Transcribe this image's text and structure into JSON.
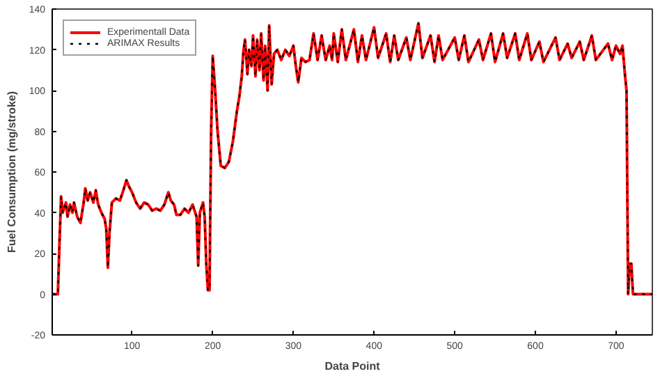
{
  "chart_data": {
    "type": "line",
    "xlabel": "Data Point",
    "ylabel": "Fuel Consumption (mg/stroke)",
    "xlim": [
      1,
      745
    ],
    "ylim": [
      -20,
      140
    ],
    "xticks": [
      100,
      200,
      300,
      400,
      500,
      600,
      700
    ],
    "yticks": [
      -20,
      0,
      20,
      40,
      60,
      80,
      100,
      120,
      140
    ],
    "grid": false,
    "legend": "top left",
    "x": [
      1,
      8,
      10,
      12,
      14,
      18,
      20,
      23,
      26,
      28,
      32,
      36,
      40,
      42,
      45,
      48,
      52,
      55,
      58,
      62,
      66,
      68,
      70,
      72,
      75,
      80,
      85,
      90,
      93,
      96,
      100,
      105,
      110,
      115,
      120,
      125,
      130,
      135,
      140,
      145,
      148,
      152,
      155,
      160,
      165,
      170,
      175,
      180,
      182,
      184,
      188,
      190,
      192,
      194,
      196,
      198,
      200,
      203,
      206,
      210,
      215,
      220,
      225,
      230,
      233,
      236,
      238,
      240,
      243,
      245,
      248,
      250,
      253,
      255,
      258,
      260,
      263,
      265,
      268,
      270,
      273,
      276,
      280,
      285,
      290,
      295,
      300,
      303,
      306,
      310,
      315,
      320,
      325,
      330,
      335,
      340,
      345,
      348,
      350,
      355,
      360,
      365,
      375,
      380,
      385,
      390,
      400,
      405,
      415,
      420,
      425,
      430,
      440,
      445,
      455,
      460,
      470,
      475,
      480,
      485,
      500,
      505,
      512,
      517,
      530,
      535,
      545,
      550,
      560,
      565,
      575,
      580,
      590,
      595,
      605,
      610,
      625,
      630,
      640,
      645,
      655,
      660,
      670,
      675,
      690,
      695,
      700,
      705,
      708,
      711,
      713,
      715,
      717,
      719,
      721,
      745
    ],
    "series": [
      {
        "name": "Experimentall Data",
        "color": "#ff0000",
        "line_style": "solid",
        "values": [
          0,
          0,
          25,
          48,
          40,
          45,
          38,
          44,
          40,
          45,
          38,
          35,
          45,
          52,
          46,
          50,
          45,
          51,
          44,
          40,
          37,
          32,
          13,
          30,
          45,
          47,
          46,
          52,
          56,
          53,
          50,
          45,
          42,
          45,
          44,
          41,
          42,
          41,
          44,
          50,
          46,
          44,
          39,
          39,
          42,
          40,
          44,
          38,
          14,
          40,
          45,
          38,
          15,
          2,
          2,
          80,
          117,
          100,
          80,
          63,
          62,
          65,
          75,
          90,
          97,
          107,
          119,
          125,
          108,
          120,
          112,
          127,
          107,
          125,
          110,
          128,
          105,
          122,
          100,
          132,
          103,
          118,
          120,
          115,
          120,
          117,
          122,
          112,
          104,
          116,
          114,
          115,
          128,
          115,
          127,
          115,
          122,
          115,
          128,
          114,
          130,
          115,
          130,
          114,
          127,
          115,
          131,
          116,
          128,
          114,
          127,
          115,
          126,
          115,
          133,
          116,
          127,
          114,
          127,
          115,
          126,
          115,
          127,
          114,
          125,
          115,
          128,
          114,
          128,
          116,
          128,
          115,
          128,
          115,
          124,
          114,
          126,
          115,
          123,
          116,
          124,
          115,
          127,
          115,
          123,
          115,
          122,
          118,
          122,
          108,
          100,
          0,
          15,
          15,
          0,
          0
        ]
      },
      {
        "name": "ARIMAX Results",
        "color": "#000000",
        "line_style": "dotted",
        "values": [
          0,
          0,
          25,
          48,
          40,
          45,
          38,
          44,
          40,
          45,
          38,
          35,
          45,
          52,
          46,
          50,
          45,
          51,
          44,
          40,
          37,
          32,
          13,
          30,
          45,
          47,
          46,
          52,
          56,
          53,
          50,
          45,
          42,
          45,
          44,
          41,
          42,
          41,
          44,
          50,
          46,
          44,
          39,
          39,
          42,
          40,
          44,
          38,
          14,
          40,
          45,
          38,
          15,
          2,
          2,
          80,
          117,
          100,
          80,
          63,
          62,
          65,
          75,
          90,
          97,
          107,
          119,
          125,
          108,
          120,
          112,
          127,
          107,
          125,
          110,
          128,
          105,
          122,
          100,
          132,
          103,
          118,
          120,
          115,
          120,
          117,
          122,
          112,
          104,
          116,
          114,
          115,
          128,
          115,
          127,
          115,
          122,
          115,
          128,
          114,
          130,
          115,
          130,
          114,
          127,
          115,
          131,
          116,
          128,
          114,
          127,
          115,
          126,
          115,
          133,
          116,
          127,
          114,
          127,
          115,
          126,
          115,
          127,
          114,
          125,
          115,
          128,
          114,
          128,
          116,
          128,
          115,
          128,
          115,
          124,
          114,
          126,
          115,
          123,
          116,
          124,
          115,
          127,
          115,
          123,
          115,
          122,
          118,
          122,
          108,
          100,
          0,
          15,
          15,
          0,
          0
        ]
      }
    ]
  }
}
